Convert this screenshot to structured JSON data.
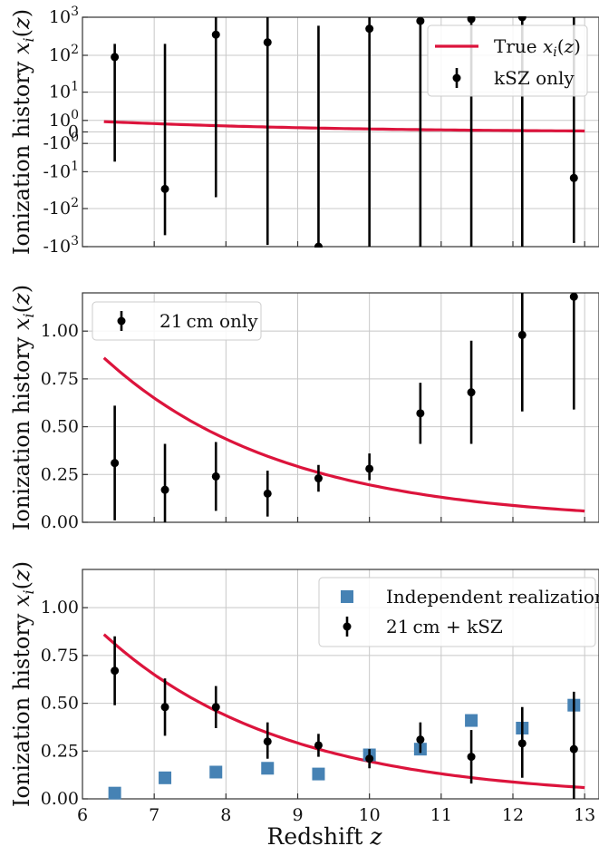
{
  "chart_data": [
    {
      "type": "scatter",
      "panel": "top",
      "yscale": "symlog",
      "ylabel": "Ionization history x_i(z)",
      "xlim": [
        6,
        13.2
      ],
      "ylim": [
        -1000,
        1000
      ],
      "yticks": [
        "10^3",
        "10^2",
        "10^1",
        "10^0",
        "0",
        "-10^0",
        "-10^1",
        "-10^2",
        "-10^3"
      ],
      "grid": true,
      "legend_position": "top-right",
      "series": [
        {
          "name": "True x_i(z)",
          "kind": "line",
          "color": "#dc143c",
          "x": [
            6.3,
            7.0,
            8.0,
            9.0,
            10.0,
            11.0,
            12.0,
            13.0
          ],
          "y": [
            0.86,
            0.7,
            0.52,
            0.37,
            0.25,
            0.16,
            0.1,
            0.06
          ]
        },
        {
          "name": "kSZ only",
          "kind": "errorbar",
          "color": "#000000",
          "x": [
            6.45,
            7.15,
            7.86,
            8.58,
            9.29,
            10.0,
            10.71,
            11.42,
            12.13,
            12.85
          ],
          "y": [
            90,
            -30,
            350,
            220,
            -1000,
            500,
            800,
            900,
            1000,
            -15
          ],
          "yerr_low": [
            -5,
            -500,
            -50,
            -900,
            -1000,
            -1000,
            -1000,
            -1000,
            -1000,
            -800
          ],
          "yerr_high": [
            200,
            200,
            1000,
            1000,
            600,
            1000,
            1000,
            1000,
            1000,
            1000
          ]
        }
      ]
    },
    {
      "type": "scatter",
      "panel": "middle",
      "ylabel": "Ionization history x_i(z)",
      "xlim": [
        6,
        13.2
      ],
      "ylim": [
        0,
        1.2
      ],
      "yticks": [
        "0.00",
        "0.25",
        "0.50",
        "0.75",
        "1.00"
      ],
      "grid": true,
      "legend_position": "top-left",
      "series": [
        {
          "kind": "line",
          "color": "#dc143c",
          "x": [
            6.3,
            7.0,
            8.0,
            9.0,
            10.0,
            11.0,
            12.0,
            13.0
          ],
          "y": [
            0.86,
            0.7,
            0.52,
            0.37,
            0.25,
            0.16,
            0.1,
            0.06
          ]
        },
        {
          "name": "21 cm only",
          "kind": "errorbar",
          "color": "#000000",
          "x": [
            6.45,
            7.15,
            7.86,
            8.58,
            9.29,
            10.0,
            10.71,
            11.42,
            12.13,
            12.85
          ],
          "y": [
            0.31,
            0.17,
            0.24,
            0.15,
            0.23,
            0.28,
            0.57,
            0.68,
            0.98,
            1.18
          ],
          "yerr_low": [
            0.01,
            0.0,
            0.06,
            0.03,
            0.16,
            0.22,
            0.41,
            0.41,
            0.58,
            0.59
          ],
          "yerr_high": [
            0.61,
            0.41,
            0.42,
            0.27,
            0.3,
            0.36,
            0.73,
            0.95,
            1.2,
            1.2
          ]
        }
      ]
    },
    {
      "type": "scatter",
      "panel": "bottom",
      "ylabel": "Ionization history x_i(z)",
      "xlabel": "Redshift z",
      "xlim": [
        6,
        13.2
      ],
      "xticks": [
        "6",
        "7",
        "8",
        "9",
        "10",
        "11",
        "12",
        "13"
      ],
      "ylim": [
        0,
        1.2
      ],
      "yticks": [
        "0.00",
        "0.25",
        "0.50",
        "0.75",
        "1.00"
      ],
      "grid": true,
      "legend_position": "top-right",
      "series": [
        {
          "kind": "line",
          "color": "#dc143c",
          "x": [
            6.3,
            7.0,
            8.0,
            9.0,
            10.0,
            11.0,
            12.0,
            13.0
          ],
          "y": [
            0.86,
            0.7,
            0.52,
            0.37,
            0.25,
            0.16,
            0.1,
            0.06
          ]
        },
        {
          "name": "Independent realization",
          "kind": "square",
          "color": "#4682b4",
          "x": [
            6.45,
            7.15,
            7.86,
            8.58,
            9.29,
            10.0,
            10.71,
            11.42,
            12.13,
            12.85
          ],
          "y": [
            0.03,
            0.11,
            0.14,
            0.16,
            0.13,
            0.23,
            0.26,
            0.41,
            0.37,
            0.49
          ]
        },
        {
          "name": "21 cm + kSZ",
          "kind": "errorbar",
          "color": "#000000",
          "x": [
            6.45,
            7.15,
            7.86,
            8.58,
            9.29,
            10.0,
            10.71,
            11.42,
            12.13,
            12.85
          ],
          "y": [
            0.67,
            0.48,
            0.48,
            0.3,
            0.28,
            0.21,
            0.31,
            0.22,
            0.29,
            0.26
          ],
          "yerr_low": [
            0.49,
            0.33,
            0.37,
            0.21,
            0.22,
            0.16,
            0.24,
            0.08,
            0.11,
            0.0
          ],
          "yerr_high": [
            0.85,
            0.63,
            0.59,
            0.4,
            0.34,
            0.26,
            0.4,
            0.36,
            0.48,
            0.56
          ]
        }
      ]
    }
  ]
}
